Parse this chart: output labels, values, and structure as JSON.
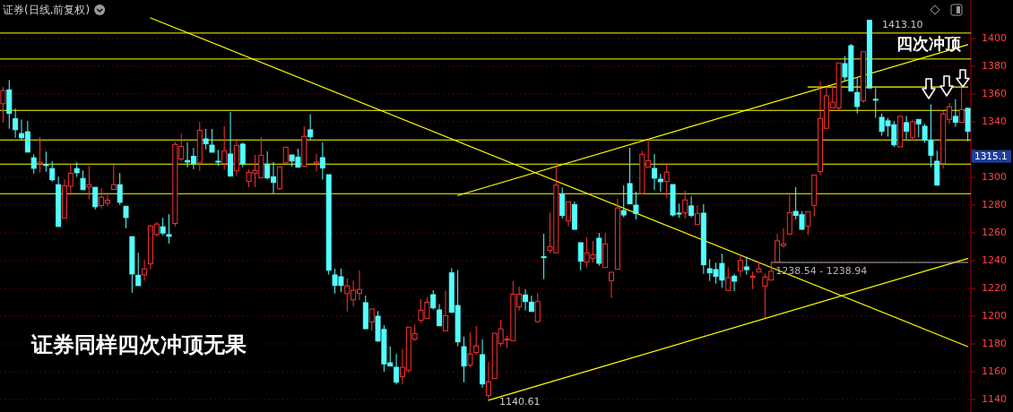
{
  "chart_data": {
    "type": "candlestick",
    "title": "证券(日线,前复权)",
    "categories": [
      null,
      null,
      null,
      null,
      null,
      null,
      null,
      null,
      null,
      null,
      null,
      null,
      null,
      null,
      null,
      null,
      null,
      null,
      null,
      null,
      null,
      null,
      null,
      null,
      null,
      null,
      null,
      null,
      null,
      null,
      null,
      null,
      null,
      null,
      null,
      null,
      null,
      null,
      null,
      null,
      null,
      null,
      null,
      null,
      null,
      null,
      null,
      null,
      null,
      null,
      null,
      null,
      null,
      null,
      null,
      null,
      null,
      null,
      null,
      null,
      null,
      null,
      null,
      null,
      null,
      null,
      null,
      null,
      null,
      null,
      null,
      null,
      null,
      null,
      null,
      null,
      null,
      null,
      null,
      null,
      null,
      null,
      null,
      null,
      null,
      null,
      null,
      null,
      null,
      null,
      null,
      null,
      null,
      null,
      null,
      null,
      null,
      null,
      null,
      null,
      null,
      null,
      null,
      null,
      null,
      null,
      null,
      null,
      null,
      null,
      null,
      null,
      null,
      null,
      null,
      null,
      null,
      null,
      null,
      null,
      null,
      null,
      null,
      null,
      null,
      null,
      null,
      null,
      null,
      null,
      null,
      null,
      null,
      null,
      null,
      null,
      null,
      null,
      null,
      null,
      null,
      null,
      null,
      null,
      null,
      null,
      null,
      null,
      null,
      null,
      null,
      null,
      null,
      null,
      null,
      null,
      null,
      null
    ],
    "ohlc": [
      [
        1353,
        1365,
        1339.4,
        1362.5
      ],
      [
        1363,
        1370,
        1335,
        1346
      ],
      [
        1342.2,
        1349.5,
        1328.5,
        1334.3
      ],
      [
        1331.5,
        1341.6,
        1327,
        1328.5
      ],
      [
        1332.8,
        1340.5,
        1318,
        1318.2
      ],
      [
        1314.1,
        1316.6,
        1302.7,
        1306.5
      ],
      [
        1309.8,
        1328.9,
        1303.3,
        1310.9
      ],
      [
        1309.1,
        1318.6,
        1304,
        1308.5
      ],
      [
        1306.3,
        1311.5,
        1296.9,
        1298.2
      ],
      [
        1294.7,
        1300.5,
        1264.6,
        1264.6
      ],
      [
        1270.6,
        1298.6,
        1270.6,
        1293.8
      ],
      [
        1293.6,
        1309.3,
        1287.2,
        1302.9
      ],
      [
        1306.3,
        1310.8,
        1300.3,
        1303.3
      ],
      [
        1299.2,
        1305,
        1291.1,
        1291.1
      ],
      [
        1293,
        1308.3,
        1284,
        1294.7
      ],
      [
        1292.8,
        1292.8,
        1276.9,
        1278.8
      ],
      [
        1279.7,
        1292.1,
        1277.5,
        1285.7
      ],
      [
        1281.4,
        1288.9,
        1279.2,
        1283.5
      ],
      [
        1291.3,
        1309.1,
        1291.3,
        1294.7
      ],
      [
        1294.7,
        1303.1,
        1280.1,
        1282
      ],
      [
        1279.2,
        1279.2,
        1263.3,
        1271
      ],
      [
        1257.3,
        1257.3,
        1216.9,
        1230.4
      ],
      [
        1229.5,
        1245.7,
        1222,
        1222
      ],
      [
        1229.8,
        1240.5,
        1225.5,
        1234.1
      ],
      [
        1237.7,
        1265.7,
        1233.6,
        1265
      ],
      [
        1258.8,
        1267.8,
        1257.3,
        1266.3
      ],
      [
        1264.4,
        1270.8,
        1258.2,
        1259.9
      ],
      [
        1258.8,
        1273.4,
        1252.3,
        1257.5
      ],
      [
        1266.8,
        1325.5,
        1264.6,
        1323.7
      ],
      [
        1313.2,
        1331.5,
        1311.5,
        1322.2
      ],
      [
        1312.1,
        1325,
        1307.2,
        1311
      ],
      [
        1315.1,
        1321.2,
        1305.9,
        1309.8
      ],
      [
        1310.4,
        1339.9,
        1304.6,
        1333.8
      ],
      [
        1327.7,
        1334.8,
        1320.2,
        1324.1
      ],
      [
        1323.2,
        1334.8,
        1318.1,
        1318.1
      ],
      [
        1311.6,
        1319.8,
        1308.4,
        1311
      ],
      [
        1309.9,
        1336.8,
        1305.6,
        1319.1
      ],
      [
        1316.8,
        1347.1,
        1300.9,
        1300.9
      ],
      [
        1304.7,
        1327.7,
        1300.9,
        1323
      ],
      [
        1323.9,
        1325,
        1307.3,
        1309.7
      ],
      [
        1297,
        1305.8,
        1292.9,
        1303.6
      ],
      [
        1303,
        1316.1,
        1292.9,
        1305
      ],
      [
        1299.6,
        1329,
        1299.6,
        1315.9
      ],
      [
        1309.5,
        1318.7,
        1298.5,
        1299.6
      ],
      [
        1300.4,
        1311,
        1288.4,
        1296.3
      ],
      [
        1291.8,
        1307.5,
        1290.7,
        1307.5
      ],
      [
        1310.5,
        1321.7,
        1309.9,
        1321.7
      ],
      [
        1316.1,
        1316.1,
        1307.7,
        1311.8
      ],
      [
        1314.6,
        1320.6,
        1306.9,
        1307.3
      ],
      [
        1307.9,
        1336.8,
        1307.3,
        1329.5
      ],
      [
        1334.2,
        1345.4,
        1327.3,
        1329.2
      ],
      [
        1310,
        1317,
        1304.1,
        1311
      ],
      [
        1314.2,
        1325.2,
        1298.3,
        1306.7
      ],
      [
        1301.9,
        1301.9,
        1229.9,
        1233.1
      ],
      [
        1229.7,
        1234.2,
        1216.3,
        1222.1
      ],
      [
        1228.4,
        1234.2,
        1217.4,
        1222.1
      ],
      [
        1216.3,
        1227.1,
        1203.4,
        1221.9
      ],
      [
        1211.8,
        1225.6,
        1206.9,
        1218.7
      ],
      [
        1216.5,
        1232.9,
        1211.4,
        1219.3
      ],
      [
        1209.7,
        1214.8,
        1190.5,
        1191
      ],
      [
        1195.9,
        1205.2,
        1189.5,
        1205.2
      ],
      [
        1200,
        1203.7,
        1181.5,
        1182.1
      ],
      [
        1190.5,
        1193.5,
        1160,
        1165.6
      ],
      [
        1166.4,
        1178.3,
        1164.1,
        1164.1
      ],
      [
        1163.2,
        1172.9,
        1150.8,
        1152.5
      ],
      [
        1156.4,
        1176.6,
        1150.8,
        1163.2
      ],
      [
        1161.1,
        1192.1,
        1159.4,
        1192.1
      ],
      [
        1183.4,
        1194,
        1182.2,
        1187.5
      ],
      [
        1197,
        1212.3,
        1195.1,
        1204.3
      ],
      [
        1198.3,
        1213.6,
        1198.3,
        1210.1
      ],
      [
        1215.5,
        1218.7,
        1204.7,
        1206
      ],
      [
        1204.5,
        1208.8,
        1193.1,
        1193.1
      ],
      [
        1189.5,
        1218.1,
        1189.5,
        1200.4
      ],
      [
        1231.2,
        1234.6,
        1202.4,
        1202.8
      ],
      [
        1207.7,
        1233.3,
        1178.3,
        1181.5
      ],
      [
        1178.1,
        1185.2,
        1152.5,
        1164.1
      ],
      [
        1164.7,
        1188.4,
        1163.2,
        1172.7
      ],
      [
        1173.8,
        1192.9,
        1172.3,
        1178.5
      ],
      [
        1172.3,
        1183.2,
        1148.6,
        1151.2
      ],
      [
        1143,
        1167.1,
        1140.61,
        1152.7
      ],
      [
        1155.1,
        1187.7,
        1155.1,
        1187.7
      ],
      [
        1180.4,
        1197.4,
        1178.3,
        1190.8
      ],
      [
        1183,
        1185.8,
        1177,
        1183.5
      ],
      [
        1182.4,
        1225.2,
        1182.4,
        1215.9
      ],
      [
        1206.7,
        1221.3,
        1204.1,
        1215.9
      ],
      [
        1215.3,
        1219.4,
        1204.1,
        1210.5
      ],
      [
        1210.1,
        1214.8,
        1203.4,
        1203.4
      ],
      [
        1196.1,
        1216.6,
        1195.1,
        1210.5
      ],
      [
        1242.8,
        1259.4,
        1226.7,
        1242.2
      ],
      [
        1247.3,
        1274.6,
        1245.4,
        1250.1
      ],
      [
        1245.6,
        1310.1,
        1245.6,
        1294.4
      ],
      [
        1288,
        1292.7,
        1270.3,
        1272.5
      ],
      [
        1268.6,
        1282.4,
        1264.5,
        1282.4
      ],
      [
        1280.4,
        1282.6,
        1262.2,
        1262.6
      ],
      [
        1252.9,
        1252.9,
        1233.1,
        1239.6
      ],
      [
        1238.9,
        1256.8,
        1235.1,
        1245.6
      ],
      [
        1241.7,
        1254.2,
        1238.5,
        1244.3
      ],
      [
        1256.1,
        1260,
        1236.3,
        1238.1
      ],
      [
        1235,
        1260,
        1235,
        1252
      ],
      [
        1225.6,
        1232,
        1213.1,
        1231.6
      ],
      [
        1233.8,
        1284.5,
        1233.8,
        1277.9
      ],
      [
        1276.1,
        1294.2,
        1271.2,
        1272.9
      ],
      [
        1295.5,
        1321.3,
        1280.9,
        1280.9
      ],
      [
        1280,
        1289.7,
        1269.7,
        1273.8
      ],
      [
        1288.4,
        1319.1,
        1288.4,
        1316.6
      ],
      [
        1307.3,
        1327.7,
        1307.3,
        1312
      ],
      [
        1306.4,
        1316.8,
        1290.8,
        1299.4
      ],
      [
        1298.7,
        1302.6,
        1289.7,
        1296.8
      ],
      [
        1297,
        1310.3,
        1285.2,
        1303.7
      ],
      [
        1294.8,
        1294.8,
        1271.8,
        1272.9
      ],
      [
        1274.2,
        1281.1,
        1270.8,
        1273.6
      ],
      [
        1274.6,
        1290.5,
        1270.3,
        1283.7
      ],
      [
        1279.4,
        1286.2,
        1271.2,
        1272.5
      ],
      [
        1266,
        1280,
        1266,
        1274
      ],
      [
        1274.2,
        1280.6,
        1230.5,
        1237
      ],
      [
        1234.2,
        1241.1,
        1225.4,
        1231.2
      ],
      [
        1233.6,
        1238.5,
        1223.4,
        1228.6
      ],
      [
        1238,
        1244.9,
        1220.6,
        1226
      ],
      [
        1218.5,
        1235.3,
        1218.5,
        1227.7
      ],
      [
        1228.8,
        1230.5,
        1218.1,
        1225.2
      ],
      [
        1232.7,
        1244.3,
        1228.4,
        1240.2
      ],
      [
        1235.5,
        1242.8,
        1229.9,
        1233.5
      ],
      [
        1228,
        1232,
        1219.6,
        1228.8
      ],
      [
        1231.8,
        1239.1,
        1231.8,
        1234
      ],
      [
        1221.7,
        1230.5,
        1198.7,
        1228.2
      ],
      [
        1226,
        1238.1,
        1226,
        1232.3
      ],
      [
        1239.1,
        1259.4,
        1239.1,
        1254.2
      ],
      [
        1250.8,
        1263.2,
        1249.3,
        1252.1
      ],
      [
        1259.1,
        1287.3,
        1259.1,
        1274.6
      ],
      [
        1275.5,
        1292.9,
        1269.7,
        1272.5
      ],
      [
        1273.1,
        1275.5,
        1262.1,
        1262.6
      ],
      [
        1264.9,
        1275.3,
        1258.3,
        1275.3
      ],
      [
        1279.8,
        1301.7,
        1271.8,
        1301.7
      ],
      [
        1304.1,
        1369.3,
        1301.5,
        1342.4
      ],
      [
        1335.3,
        1365.4,
        1335.3,
        1358.7
      ],
      [
        1349.9,
        1365.4,
        1349.9,
        1354
      ],
      [
        1349.9,
        1382.4,
        1348.2,
        1382.4
      ],
      [
        1381.9,
        1387.3,
        1369.3,
        1372.3
      ],
      [
        1394.8,
        1396.1,
        1362.1,
        1362.1
      ],
      [
        1361.1,
        1371.4,
        1346,
        1351
      ],
      [
        1355.1,
        1390.5,
        1353.5,
        1390.5
      ],
      [
        1413.1,
        1413.1,
        1364.3,
        1364.3
      ],
      [
        1356.2,
        1364.3,
        1342.8,
        1355.6
      ],
      [
        1343.2,
        1346,
        1329.9,
        1333.1
      ],
      [
        1340.7,
        1342.8,
        1329.3,
        1337
      ],
      [
        1337.9,
        1340.7,
        1321.9,
        1323.4
      ],
      [
        1321.9,
        1344.3,
        1321.9,
        1343.9
      ],
      [
        1339.4,
        1344.3,
        1327.3,
        1333.1
      ],
      [
        1328.8,
        1341.7,
        1326.7,
        1340
      ],
      [
        1341.7,
        1341.7,
        1328.8,
        1338.5
      ],
      [
        1336.8,
        1338.5,
        1325,
        1326.7
      ],
      [
        1326.7,
        1352.5,
        1307.3,
        1315.9
      ],
      [
        1311.6,
        1319.1,
        1294,
        1294.4
      ],
      [
        1309.9,
        1347.8,
        1306.2,
        1345.6
      ],
      [
        1341.7,
        1353.5,
        1338.5,
        1350.8
      ],
      [
        1343.9,
        1356.1,
        1336.4,
        1339.6
      ],
      [
        1339.6,
        1364.3,
        1339.6,
        1348.8
      ],
      [
        1349.7,
        1350.3,
        1326,
        1333.1
      ]
    ],
    "colors": [
      "#ff3232",
      "#54ffff",
      "#54ffff",
      "#54ffff",
      "#54ffff",
      "#54ffff",
      "#ff3232",
      "#54ffff",
      "#54ffff",
      "#54ffff",
      "#ff3232",
      "#ff3232",
      "#54ffff",
      "#54ffff",
      "#ff3232",
      "#54ffff",
      "#ff3232",
      "#ff3232",
      "#ff3232",
      "#54ffff",
      "#54ffff",
      "#54ffff",
      "#54ffff",
      "#ff3232",
      "#ff3232",
      "#ff3232",
      "#54ffff",
      "#54ffff",
      "#ff3232",
      "#ff3232",
      "#54ffff",
      "#54ffff",
      "#ff3232",
      "#54ffff",
      "#54ffff",
      "#54ffff",
      "#ff3232",
      "#54ffff",
      "#ff3232",
      "#54ffff",
      "#ff3232",
      "#ff3232",
      "#ff3232",
      "#54ffff",
      "#54ffff",
      "#ff3232",
      "#ff3232",
      "#54ffff",
      "#54ffff",
      "#ff3232",
      "#54ffff",
      "#ff3232",
      "#54ffff",
      "#54ffff",
      "#54ffff",
      "#54ffff",
      "#ff3232",
      "#ff3232",
      "#ff3232",
      "#54ffff",
      "#ff3232",
      "#54ffff",
      "#54ffff",
      "#54ffff",
      "#54ffff",
      "#ff3232",
      "#ff3232",
      "#ff3232",
      "#ff3232",
      "#ff3232",
      "#54ffff",
      "#54ffff",
      "#ff3232",
      "#54ffff",
      "#54ffff",
      "#54ffff",
      "#ff3232",
      "#ff3232",
      "#54ffff",
      "#ff3232",
      "#ff3232",
      "#ff3232",
      "#ff3232",
      "#ff3232",
      "#ff3232",
      "#54ffff",
      "#54ffff",
      "#ff3232",
      "#54ffff",
      "#ff3232",
      "#ff3232",
      "#54ffff",
      "#ff3232",
      "#54ffff",
      "#54ffff",
      "#ff3232",
      "#ff3232",
      "#54ffff",
      "#ff3232",
      "#ff3232",
      "#ff3232",
      "#54ffff",
      "#54ffff",
      "#54ffff",
      "#ff3232",
      "#ff3232",
      "#54ffff",
      "#54ffff",
      "#ff3232",
      "#54ffff",
      "#54ffff",
      "#ff3232",
      "#54ffff",
      "#ff3232",
      "#54ffff",
      "#54ffff",
      "#54ffff",
      "#54ffff",
      "#ff3232",
      "#54ffff",
      "#ff3232",
      "#54ffff",
      "#ff3232",
      "#ff3232",
      "#ff3232",
      "#ff3232",
      "#ff3232",
      "#ff3232",
      "#ff3232",
      "#54ffff",
      "#54ffff",
      "#ff3232",
      "#ff3232",
      "#ff3232",
      "#ff3232",
      "#ff3232",
      "#ff3232",
      "#54ffff",
      "#54ffff",
      "#54ffff",
      "#ff3232",
      "#54ffff",
      "#54ffff",
      "#54ffff",
      "#54ffff",
      "#54ffff",
      "#ff3232",
      "#54ffff",
      "#ff3232",
      "#54ffff",
      "#54ffff",
      "#54ffff",
      "#54ffff",
      "#ff3232",
      "#ff3232",
      "#54ffff",
      "#ff3232",
      "#54ffff"
    ],
    "series": [
      {
        "type": "line",
        "color": "#ffff00",
        "values": [
          null,
          null,
          null,
          null,
          null,
          null,
          null,
          null,
          null,
          null,
          null,
          null,
          null,
          null,
          null,
          null,
          null,
          null,
          null,
          null,
          null,
          null,
          null,
          null,
          1414.8,
          null,
          null,
          null,
          null,
          null,
          null,
          null,
          null,
          null,
          null,
          null,
          null,
          null,
          null,
          null,
          null,
          null,
          null,
          null,
          null,
          null,
          null,
          null,
          null,
          null,
          null,
          null,
          null,
          null,
          null,
          null,
          null,
          null,
          null,
          null,
          null,
          null,
          null,
          null,
          null,
          null,
          null,
          null,
          null,
          null,
          null,
          null,
          null,
          null,
          null,
          null,
          null,
          null,
          null,
          null,
          null,
          null,
          null,
          null,
          null,
          null,
          null,
          null,
          null,
          null,
          null,
          null,
          null,
          null,
          null,
          null,
          null,
          null,
          null,
          null,
          null,
          null,
          null,
          null,
          null,
          null,
          null,
          null,
          null,
          null,
          null,
          null,
          null,
          null,
          null,
          null,
          null,
          null,
          null,
          null,
          null,
          null,
          null,
          null,
          null,
          null,
          null,
          null,
          null,
          null,
          null,
          null,
          null,
          null,
          null,
          null,
          null,
          null,
          null,
          null,
          null,
          null,
          null,
          null,
          null,
          null,
          null,
          null,
          null,
          null,
          null,
          null,
          null,
          null,
          null,
          null,
          null,
          1178.1
        ]
      },
      {
        "type": "line",
        "color": "#ffff00",
        "values": [
          null,
          null,
          null,
          null,
          null,
          null,
          null,
          null,
          null,
          null,
          null,
          null,
          null,
          null,
          null,
          null,
          null,
          null,
          null,
          null,
          null,
          null,
          null,
          null,
          null,
          null,
          null,
          null,
          null,
          null,
          null,
          null,
          null,
          null,
          null,
          null,
          null,
          null,
          null,
          null,
          null,
          null,
          null,
          null,
          null,
          null,
          null,
          null,
          null,
          null,
          null,
          null,
          null,
          null,
          null,
          null,
          null,
          null,
          null,
          null,
          null,
          null,
          null,
          null,
          null,
          null,
          null,
          null,
          null,
          null,
          null,
          null,
          null,
          null,
          1286.9,
          null,
          null,
          null,
          null,
          null,
          null,
          null,
          null,
          null,
          null,
          null,
          null,
          null,
          null,
          null,
          null,
          null,
          null,
          null,
          null,
          null,
          null,
          null,
          null,
          null,
          null,
          null,
          null,
          null,
          null,
          null,
          null,
          null,
          null,
          null,
          null,
          null,
          null,
          null,
          null,
          null,
          null,
          null,
          null,
          null,
          null,
          null,
          null,
          null,
          null,
          null,
          null,
          null,
          null,
          null,
          null,
          null,
          null,
          null,
          null,
          null,
          null,
          null,
          null,
          null,
          null,
          null,
          null,
          null,
          null,
          null,
          null,
          null,
          null,
          null,
          null,
          null,
          null,
          null,
          null,
          null,
          null,
          1395.5
        ]
      },
      {
        "type": "line",
        "color": "#ffff00",
        "values": [
          null,
          null,
          null,
          null,
          null,
          null,
          null,
          null,
          null,
          null,
          null,
          null,
          null,
          null,
          null,
          null,
          null,
          null,
          null,
          null,
          null,
          null,
          null,
          null,
          null,
          null,
          null,
          null,
          null,
          null,
          null,
          null,
          null,
          null,
          null,
          null,
          null,
          null,
          null,
          null,
          null,
          null,
          null,
          null,
          null,
          null,
          null,
          null,
          null,
          null,
          null,
          null,
          null,
          null,
          null,
          null,
          null,
          null,
          null,
          null,
          null,
          null,
          null,
          null,
          null,
          null,
          null,
          null,
          null,
          null,
          null,
          null,
          null,
          null,
          null,
          null,
          null,
          null,
          null,
          1139.5,
          null,
          null,
          null,
          null,
          null,
          null,
          null,
          null,
          null,
          null,
          null,
          null,
          null,
          null,
          null,
          null,
          null,
          null,
          null,
          null,
          null,
          null,
          null,
          null,
          null,
          null,
          null,
          null,
          null,
          null,
          null,
          null,
          null,
          null,
          null,
          null,
          null,
          null,
          null,
          null,
          null,
          null,
          null,
          null,
          null,
          null,
          null,
          null,
          null,
          null,
          null,
          null,
          null,
          null,
          null,
          null,
          null,
          null,
          null,
          null,
          null,
          null,
          null,
          null,
          null,
          null,
          null,
          null,
          null,
          null,
          null,
          null,
          null,
          null,
          null,
          null,
          null,
          1241.5
        ]
      },
      {
        "type": "line",
        "color": "#ffff00",
        "values": [
          null,
          null,
          null,
          null,
          null,
          null,
          null,
          null,
          null,
          null,
          null,
          null,
          null,
          null,
          null,
          null,
          null,
          null,
          null,
          null,
          null,
          null,
          null,
          null,
          null,
          null,
          null,
          null,
          null,
          null,
          null,
          null,
          null,
          null,
          null,
          null,
          null,
          null,
          null,
          null,
          null,
          null,
          null,
          null,
          null,
          null,
          null,
          null,
          null,
          null,
          null,
          null,
          null,
          null,
          null,
          null,
          null,
          null,
          null,
          null,
          null,
          null,
          null,
          null,
          null,
          null,
          null,
          null,
          null,
          null,
          null,
          null,
          null,
          null,
          null,
          null,
          null,
          null,
          null,
          null,
          null,
          null,
          null,
          null,
          null,
          null,
          null,
          null,
          null,
          null,
          null,
          null,
          null,
          null,
          null,
          null,
          null,
          null,
          null,
          null,
          null,
          null,
          null,
          null,
          null,
          null,
          null,
          null,
          null,
          null,
          null,
          null,
          null,
          null,
          null,
          null,
          null,
          null,
          null,
          null,
          null,
          null,
          null,
          null,
          null,
          null,
          null,
          null,
          null,
          null,
          null,
          1365.1,
          null,
          null,
          null,
          null,
          null,
          null,
          null,
          null,
          null,
          null,
          null,
          null,
          null,
          null,
          null,
          null,
          null,
          null,
          null,
          null,
          null,
          null,
          null,
          null,
          null,
          1365.1
        ]
      },
      {
        "type": "line",
        "name": "1238.54 - 1238.94",
        "color": "#b4b4b4",
        "values": [
          null,
          null,
          null,
          null,
          null,
          null,
          null,
          null,
          null,
          null,
          null,
          null,
          null,
          null,
          null,
          null,
          null,
          null,
          null,
          null,
          null,
          null,
          null,
          null,
          null,
          null,
          null,
          null,
          null,
          null,
          null,
          null,
          null,
          null,
          null,
          null,
          null,
          null,
          null,
          null,
          null,
          null,
          null,
          null,
          null,
          null,
          null,
          null,
          null,
          null,
          null,
          null,
          null,
          null,
          null,
          null,
          null,
          null,
          null,
          null,
          null,
          null,
          null,
          null,
          null,
          null,
          null,
          null,
          null,
          null,
          null,
          null,
          null,
          null,
          null,
          null,
          null,
          null,
          null,
          null,
          null,
          null,
          null,
          null,
          null,
          null,
          null,
          null,
          null,
          null,
          null,
          null,
          null,
          null,
          null,
          null,
          null,
          null,
          null,
          null,
          null,
          null,
          null,
          null,
          null,
          null,
          null,
          null,
          null,
          null,
          null,
          null,
          null,
          null,
          null,
          null,
          null,
          null,
          null,
          null,
          null,
          null,
          null,
          null,
          null,
          1238.7,
          null,
          null,
          null,
          null,
          null,
          null,
          null,
          null,
          null,
          null,
          null,
          null,
          null,
          null,
          null,
          null,
          null,
          null,
          null,
          null,
          null,
          null,
          null,
          null,
          null,
          null,
          null,
          null,
          null,
          null,
          null,
          1238.7
        ]
      }
    ],
    "ref_lines": [
      {
        "axis": "y",
        "value": 1403.9,
        "color": "#ffff00"
      },
      {
        "axis": "y",
        "value": 1385.2,
        "color": "#ffff00"
      },
      {
        "axis": "y",
        "value": 1348.2,
        "color": "#ffff00"
      },
      {
        "axis": "y",
        "value": 1326.9,
        "color": "#ffff00"
      },
      {
        "axis": "y",
        "value": 1309.5,
        "color": "#ffff00"
      },
      {
        "axis": "y",
        "value": 1288.2,
        "color": "#ffff00"
      }
    ],
    "ylim": [
      1131,
      1427.7
    ],
    "yticks": [
      1140,
      1160,
      1180,
      1200,
      1220,
      1240,
      1260,
      1280,
      1300,
      {
        "value": 1320,
        "label": null
      },
      1340,
      1360,
      1380,
      1400
    ],
    "grid": "y",
    "annotations": [
      "证券同样四次冲顶无果",
      "四次冲顶",
      "1413.10",
      "1140.61",
      {
        "text": "1315.1",
        "y": 1315.1
      }
    ]
  }
}
